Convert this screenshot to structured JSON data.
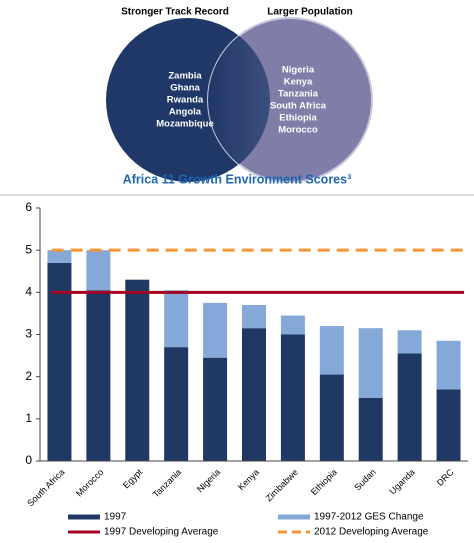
{
  "venn": {
    "left_label": "Stronger Track Record",
    "right_label": "Larger Population",
    "left_items": [
      "Zambia",
      "Ghana",
      "Rwanda",
      "Angola",
      "Mozambique"
    ],
    "right_items": [
      "Nigeria",
      "Kenya",
      "Tanzania",
      "South Africa",
      "Ethiopia",
      "Morocco"
    ]
  },
  "chart_data": {
    "type": "stacked_bar",
    "title": "Africa 11 Growth Environment Scores³",
    "categories": [
      "South Africa",
      "Morocco",
      "Egypt",
      "Tanzania",
      "Nigeria",
      "Kenya",
      "Zimbabwe",
      "Ethiopia",
      "Sudan",
      "Uganda",
      "DRC"
    ],
    "series": [
      {
        "name": "1997",
        "color": "#1f3864",
        "values": [
          4.7,
          4.05,
          4.3,
          2.7,
          2.45,
          3.15,
          3.0,
          2.05,
          1.5,
          2.55,
          1.7
        ]
      },
      {
        "name": "1997-2012 GES Change",
        "color": "#84a9d9",
        "values": [
          0.3,
          0.95,
          0,
          1.35,
          1.3,
          0.55,
          0.45,
          1.15,
          1.65,
          0.55,
          1.15
        ]
      }
    ],
    "reference_lines": [
      {
        "name": "1997 Developing Average",
        "value": 4,
        "color": "#a50021",
        "dashed": false
      },
      {
        "name": "2012 Developing Average",
        "value": 5,
        "color": "#f79433",
        "dashed": true
      }
    ],
    "ylim": [
      0,
      6
    ],
    "yticks": [
      0,
      1,
      2,
      3,
      4,
      5,
      6
    ]
  }
}
